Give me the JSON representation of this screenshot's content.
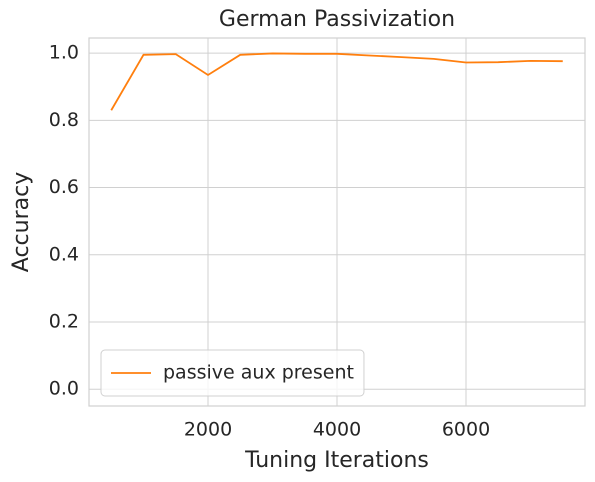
{
  "chart_data": {
    "type": "line",
    "title": "German Passivization",
    "x_label": "Tuning Iterations",
    "y_label": "Accuracy",
    "x": [
      500,
      1000,
      1500,
      2000,
      2500,
      3000,
      3500,
      4000,
      4500,
      5000,
      5500,
      6000,
      6500,
      7000,
      7500
    ],
    "series": [
      {
        "name": "passive aux present",
        "color": "#ff7f0e",
        "values": [
          0.83,
          0.995,
          0.997,
          0.935,
          0.995,
          0.999,
          0.998,
          0.998,
          0.993,
          0.988,
          0.983,
          0.972,
          0.973,
          0.977,
          0.976
        ]
      }
    ],
    "xlim": [
      155,
      7845
    ],
    "xticks": [
      2000,
      4000,
      6000
    ],
    "ylim": [
      -0.05,
      1.045
    ],
    "yticks": [
      {
        "value": 0,
        "label": "0.0"
      },
      {
        "value": 0.2,
        "label": "0.2"
      },
      {
        "value": 0.4,
        "label": "0.4"
      },
      {
        "value": 0.6,
        "label": "0.6"
      },
      {
        "value": 0.8,
        "label": "0.8"
      },
      {
        "value": 1,
        "label": "1.0"
      }
    ],
    "grid": true,
    "legend": "lower left"
  }
}
